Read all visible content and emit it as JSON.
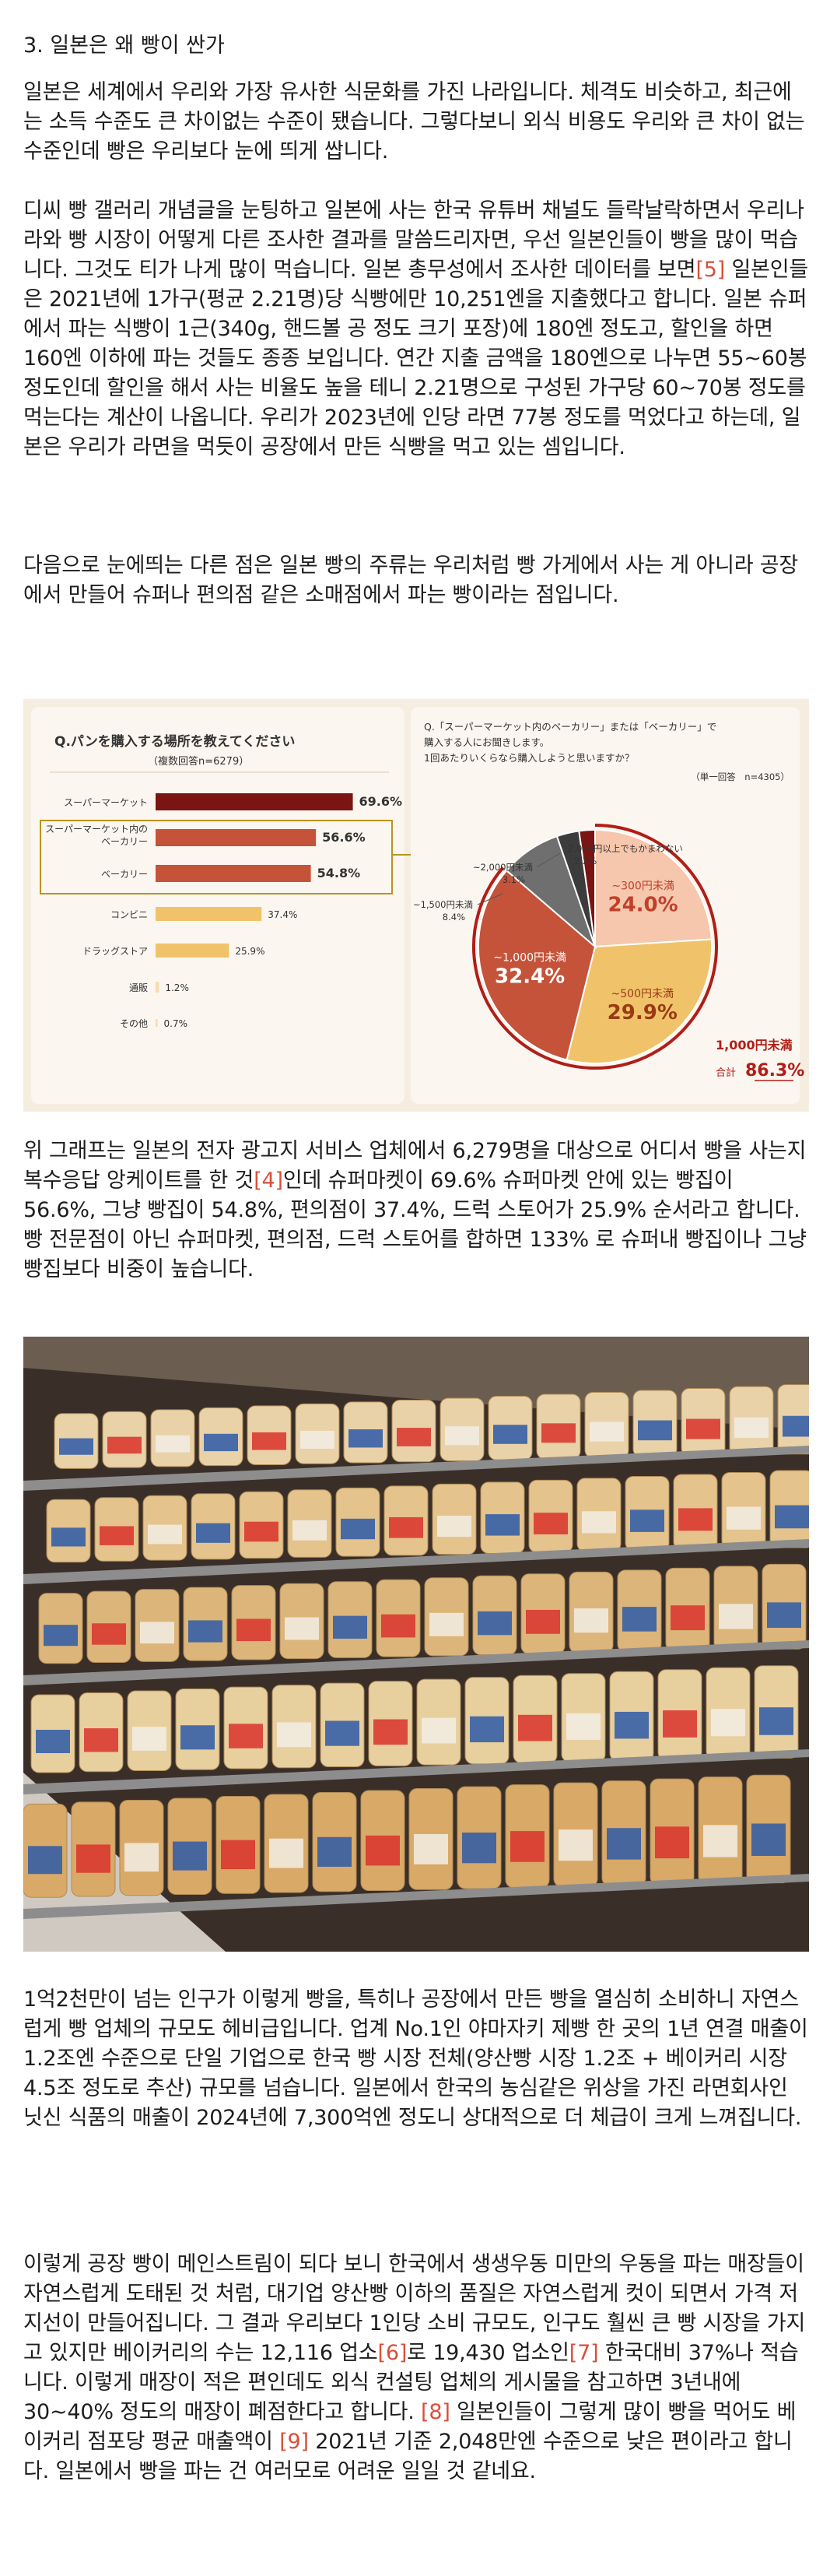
{
  "heading": "3. 일본은 왜 빵이 싼가",
  "paragraphs": [
    {
      "id": "p1",
      "top": 100,
      "runs": [
        {
          "t": "일본은 세계에서 우리와 가장 유사한 식문화를 가진 나라입니다. 체격도 비슷하고, 최근에는 소득 수준도 큰 차이없는 수준이 됐습니다. 그렇다보니 외식 비용도 우리와 큰 차이 없는 수준인데 빵은 우리보다 눈에 띄게 쌉니다."
        }
      ]
    },
    {
      "id": "p2",
      "top": 252,
      "runs": [
        {
          "t": "디씨 빵 갤러리 개념글을 눈팅하고 일본에 사는 한국 유튜버 채널도 들락날락하면서 우리나라와 빵 시장이 어떻게 다른 조사한 결과를 말씀드리자면, 우선 일본인들이 빵을 많이 먹습니다. 그것도 티가 나게 많이 먹습니다. 일본 총무성에서 조사한 데이터를 보면"
        },
        {
          "t": "[5]",
          "ref": true
        },
        {
          "t": " 일본인들은 2021년에 1가구(평균 2.21명)당 식빵에만 10,251엔을 지출했다고 합니다. 일본 슈퍼에서 파는 식빵이 1근(340g, 핸드볼 공 정도 크기 포장)에 180엔 정도고, 할인을 하면 160엔 이하에 파는 것들도 종종 보입니다. 연간 지출 금액을 180엔으로 나누면 55~60봉 정도인데 할인을 해서 사는 비율도 높을 테니 2.21명으로 구성된 가구당 60~70봉 정도를 먹는다는 계산이 나옵니다. 우리가 2023년에 인당 라면 77봉 정도를 먹었다고 하는데, 일본은 우리가 라면을 먹듯이 공장에서 만든 식빵을 먹고 있는 셈입니다."
        }
      ]
    },
    {
      "id": "p3",
      "top": 708,
      "runs": [
        {
          "t": "다음으로 눈에띄는 다른 점은 일본 빵의 주류는 우리처럼 빵 가게에서 사는 게 아니라 공장에서 만들어 슈퍼나 편의점 같은 소매점에서 파는 빵이라는 점입니다."
        }
      ]
    },
    {
      "id": "p4",
      "top": 1460,
      "runs": [
        {
          "t": "위 그래프는 일본의 전자 광고지 서비스 업체에서 6,279명을 대상으로 어디서 빵을 사는지 복수응답 앙케이트를 한 것"
        },
        {
          "t": "[4]",
          "ref": true
        },
        {
          "t": "인데 슈퍼마켓이 69.6% 슈퍼마켓 안에 있는 빵집이 56.6%, 그냥 빵집이 54.8%, 편의점이 37.4%, 드럭 스토어가 25.9% 순서라고 합니다.  빵 전문점이 아닌 슈퍼마켓, 편의점, 드럭 스토어를 합하면 133% 로 슈퍼내 빵집이나 그냥 빵집보다 비중이 높습니다."
        }
      ]
    },
    {
      "id": "p5",
      "top": 2550,
      "runs": [
        {
          "t": "1억2천만이 넘는 인구가 이렇게 빵을, 특히나 공장에서 만든 빵을 열심히 소비하니 자연스럽게 빵 업체의 규모도 헤비급입니다. 업계 No.1인 야마자키 제빵 한 곳의 1년 연결 매출이 1.2조엔 수준으로 단일 기업으로 한국 빵 시장 전체(양산빵 시장 1.2조 + 베이커리 시장 4.5조 정도로 추산) 규모를 넘습니다. 일본에서 한국의 농심같은 위상을 가진 라면회사인 닛신 식품의 매출이 2024년에 7,300억엔 정도니 상대적으로 더 체급이 크게 느껴집니다."
        }
      ]
    },
    {
      "id": "p6",
      "top": 2890,
      "runs": [
        {
          "t": "이렇게 공장 빵이 메인스트림이 되다 보니 한국에서 생생우동 미만의 우동을 파는 매장들이 자연스럽게 도태된 것 처럼, 대기업 양산빵 이하의 품질은 자연스럽게 컷이 되면서 가격 저지선이 만들어집니다. 그 결과 우리보다 1인당 소비 규모도, 인구도 훨씬 큰 빵 시장을 가지고 있지만 베이커리의 수는 12,116 업소"
        },
        {
          "t": "[6]",
          "ref": true
        },
        {
          "t": "로 19,430 업소인"
        },
        {
          "t": "[7]",
          "ref": true
        },
        {
          "t": " 한국대비 37%나 적습니다. 이렇게 매장이 적은 편인데도 외식 컨설팅 업체의 게시물을 참고하면 3년내에 30~40% 정도의 매장이 폐점한다고 합니다. "
        },
        {
          "t": "[8]",
          "ref": true
        },
        {
          "t": " 일본인들이 그렇게 많이 빵을 먹어도 베이커리 점포당 평균 매출액이 "
        },
        {
          "t": "[9]",
          "ref": true
        },
        {
          "t": " 2021년 기준 2,048만엔 수준으로 낮은 편이라고 합니다. 일본에서 빵을 파는 건 여러모로 어려운 일일 것 같네요."
        }
      ]
    }
  ],
  "chart_data": [
    {
      "type": "bar",
      "title": "Q.パンを購入する場所を教えてください",
      "subtitle": "（複数回答n=6279）",
      "categories": [
        "スーパーマーケット",
        "スーパーマーケット内のベーカリー",
        "ベーカリー",
        "コンビニ",
        "ドラッグストア",
        "通販",
        "その他"
      ],
      "category_lines": [
        [
          "スーパーマーケット"
        ],
        [
          "スーパーマーケット内の",
          "ベーカリー"
        ],
        [
          "ベーカリー"
        ],
        [
          "コンビニ"
        ],
        [
          "ドラッグストア"
        ],
        [
          "通販"
        ],
        [
          "その他"
        ]
      ],
      "values": [
        69.6,
        56.6,
        54.8,
        37.4,
        25.9,
        1.2,
        0.7
      ],
      "value_labels": [
        "69.6%",
        "56.6%",
        "54.8%",
        "37.4%",
        "25.9%",
        "1.2%",
        "0.7%"
      ],
      "colors": [
        "#7a1514",
        "#c4533a",
        "#c4533a",
        "#f0c36a",
        "#f0c36a",
        "#f7dcae",
        "#f7dcae"
      ],
      "highlight_box": [
        "スーパーマーケット内のベーカリー",
        "ベーカリー"
      ],
      "xlim": [
        0,
        70
      ]
    },
    {
      "type": "pie",
      "title_lines": [
        "Q.「スーパーマーケット内のベーカリー」または「ベーカリー」で",
        "購入する人にお聞きします。",
        "1回あたりいくらなら購入しようと思いますか？"
      ],
      "subtitle": "（単一回答　n=4305）",
      "slices": [
        {
          "label": "~300円未満",
          "value": 24.0,
          "value_label": "24.0%",
          "color": "#f6c7ad"
        },
        {
          "label": "~500円未満",
          "value": 29.9,
          "value_label": "29.9%",
          "color": "#f0c36a"
        },
        {
          "label": "~1,000円未満",
          "value": 32.4,
          "value_label": "32.4%",
          "color": "#c4533a"
        },
        {
          "label": "~1,500円未満",
          "value": 8.4,
          "value_label": "8.4%",
          "color": "#6f6f6f"
        },
        {
          "label": "~2,000円未満",
          "value": 3.1,
          "value_label": "3.1%",
          "color": "#3c3c3c"
        },
        {
          "label": "2,000円以上でもかまわない",
          "value": 2.2,
          "value_label": "2.2%",
          "color": "#7a1514"
        }
      ],
      "annotation": {
        "label": "1,000円未満",
        "total_label": "合計",
        "total_value": "86.3%",
        "color": "#b01e18"
      }
    }
  ],
  "photo": {
    "description_icon": "bread-shelf-photo"
  }
}
